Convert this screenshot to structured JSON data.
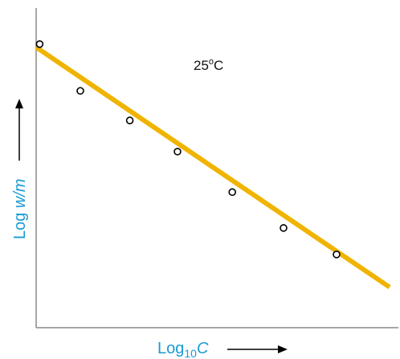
{
  "chart_data": {
    "type": "scatter",
    "xlabel": {
      "prefix": "Log",
      "subscript": "10",
      "var": "C"
    },
    "ylabel": {
      "prefix": "Log ",
      "var": "w/m"
    },
    "annotation": {
      "value": "25",
      "degree": "o",
      "unit": "C"
    },
    "xlim": [
      0,
      10
    ],
    "ylim": [
      0,
      10
    ],
    "grid": false,
    "ticks": false,
    "points": [
      {
        "x": 0.1,
        "y": 9.1
      },
      {
        "x": 1.25,
        "y": 7.6
      },
      {
        "x": 2.65,
        "y": 6.65
      },
      {
        "x": 4.0,
        "y": 5.65
      },
      {
        "x": 5.55,
        "y": 4.35
      },
      {
        "x": 7.0,
        "y": 3.2
      },
      {
        "x": 8.5,
        "y": 2.35
      }
    ],
    "fit_line": {
      "x": [
        0,
        10
      ],
      "y": [
        9.0,
        1.3
      ]
    },
    "colors": {
      "line": "#f0b400",
      "label": "#1a9ad6",
      "axes": "#888888",
      "marker": "#000000"
    }
  }
}
